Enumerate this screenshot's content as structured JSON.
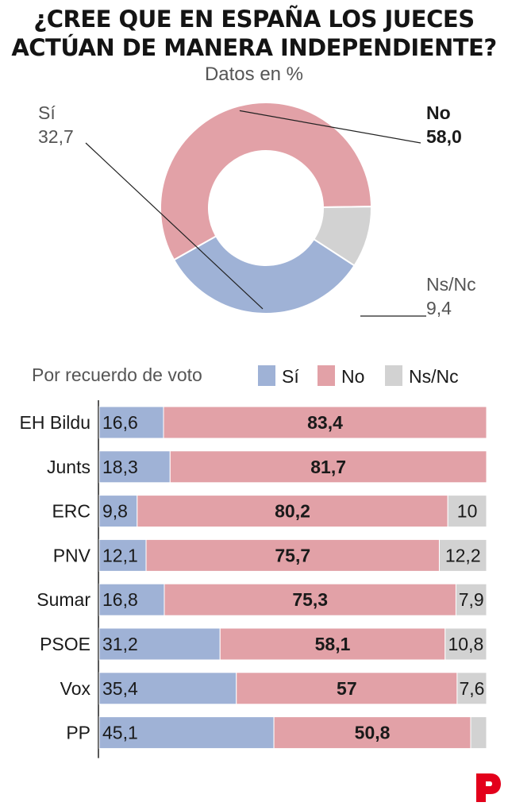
{
  "title_line1": "¿CREE QUE EN ESPAÑA LOS JUECES",
  "title_line2": "ACTÚAN DE MANERA INDEPENDIENTE?",
  "subtitle": "Datos en %",
  "colors": {
    "si": "#9fb2d6",
    "no": "#e2a1a7",
    "nsnc": "#d2d2d2",
    "text": "#1a1a1a",
    "muted": "#555555",
    "logo": "#e3001b"
  },
  "logo_icon": "p-logo-icon",
  "chart_data": [
    {
      "type": "pie",
      "donut": true,
      "labels": [
        "Sí",
        "No",
        "Ns/Nc"
      ],
      "values": [
        32.7,
        58.0,
        9.4
      ],
      "value_labels": [
        "32,7",
        "58,0",
        "9,4"
      ],
      "highlight": "No"
    },
    {
      "type": "bar",
      "orientation": "horizontal",
      "stacked": true,
      "title": "Por recuerdo de voto",
      "categories": [
        "EH Bildu",
        "Junts",
        "ERC",
        "PNV",
        "Sumar",
        "PSOE",
        "Vox",
        "PP"
      ],
      "series": [
        {
          "name": "Sí",
          "values": [
            16.6,
            18.3,
            9.8,
            12.1,
            16.8,
            31.2,
            35.4,
            45.1
          ],
          "labels": [
            "16,6",
            "18,3",
            "9,8",
            "12,1",
            "16,8",
            "31,2",
            "35,4",
            "45,1"
          ]
        },
        {
          "name": "No",
          "values": [
            83.4,
            81.7,
            80.2,
            75.7,
            75.3,
            58.1,
            57,
            50.8
          ],
          "labels": [
            "83,4",
            "81,7",
            "80,2",
            "75,7",
            "75,3",
            "58,1",
            "57",
            "50,8"
          ]
        },
        {
          "name": "Ns/Nc",
          "values": [
            0,
            0,
            10,
            12.2,
            7.9,
            10.8,
            7.6,
            4.1
          ],
          "labels": [
            "",
            "",
            "10",
            "12,2",
            "7,9",
            "10,8",
            "7,6",
            ""
          ]
        }
      ],
      "xlim": [
        0,
        100
      ],
      "legend": "top"
    }
  ]
}
